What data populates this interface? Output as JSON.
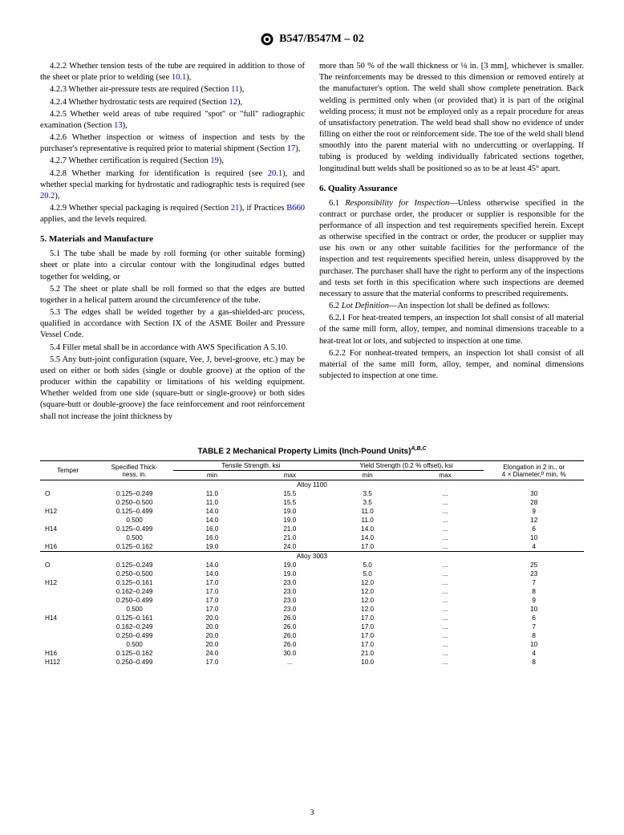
{
  "header": {
    "designation": "B547/B547M – 02"
  },
  "left": {
    "p422": "4.2.2 Whether tension tests of the tube are required in addition to those of the sheet or plate prior to welding (see ",
    "p422_ref": "10.1",
    "p422_end": "),",
    "p423": "4.2.3 Whether air-pressure tests are required (Section ",
    "p423_ref": "11",
    "p423_end": "),",
    "p424": "4.2.4 Whether hydrostatic tests are required (Section ",
    "p424_ref": "12",
    "p424_end": "),",
    "p425": "4.2.5 Whether weld areas of tube required \"spot\" or \"full\" radiographic examination (Section ",
    "p425_ref": "13",
    "p425_end": "),",
    "p426": "4.2.6 Whether inspection or witness of inspection and tests by the purchaser's representative is required prior to material shipment (Section ",
    "p426_ref": "17",
    "p426_end": "),",
    "p427": "4.2.7 Whether certification is required (Section ",
    "p427_ref": "19",
    "p427_end": "),",
    "p428a": "4.2.8 Whether marking for identification is required (see ",
    "p428_ref1": "20.1",
    "p428b": "), and whether special marking for hydrostatic and radiographic tests is required (see ",
    "p428_ref2": "20.2",
    "p428_end": "),",
    "p429a": "4.2.9 Whether special packaging is required (Section ",
    "p429_ref1": "21",
    "p429b": "), if Practices ",
    "p429_ref2": "B660",
    "p429_end": " applies, and the levels required.",
    "sec5_title": "5. Materials and Manufacture",
    "p51": "5.1 The tube shall be made by roll forming (or other suitable forming) sheet or plate into a circular contour with the longitudinal edges butted together for welding, or",
    "p52": "5.2 The sheet or plate shall be roll formed so that the edges are butted together in a helical pattern around the circumference of the tube.",
    "p53": "5.3 The edges shall be welded together by a gas-shielded-arc process, qualified in accordance with Section IX of the ASME Boiler and Pressure Vessel Code.",
    "p54": "5.4 Filler metal shall be in accordance with AWS Specification A 5.10.",
    "p55": "5.5 Any butt-joint configuration (square, Vee, J, bevel-groove, etc.) may be used on either or both sides (single or double groove) at the option of the producer within the capability or limitations of his welding equipment. Whether welded from one side (square-butt or single-groove) or both sides (square-butt or double-groove) the face reinforcement and root reinforcement shall not increase the joint thickness by"
  },
  "right": {
    "p55_cont": "more than 50 % of the wall thickness or ⅛ in. [3 mm], whichever is smaller. The reinforcements may be dressed to this dimension or removed entirely at the manufacturer's option. The weld shall show complete penetration. Back welding is permitted only when (or provided that) it is part of the original welding process; it must not be employed only as a repair procedure for areas of unsatisfactory penetration. The weld bead shall show no evidence of under filling on either the root or reinforcement side. The toe of the weld shall blend smoothly into the parent material with no undercutting or overlapping. If tubing is produced by welding individually fabricated sections together, longitudinal butt welds shall be positioned so as to be at least 45° apart.",
    "sec6_title": "6. Quality Assurance",
    "p61_lead": "6.1 ",
    "p61_head": "Responsibility for Inspection",
    "p61_body": "—Unless otherwise specified in the contract or purchase order, the producer or supplier is responsible for the performance of all inspection and test requirements specified herein. Except as otherwise specified in the contract or order, the producer or supplier may use his own or any other suitable facilities for the performance of the inspection and test requirements specified herein, unless disapproved by the purchaser. The purchaser shall have the right to perform any of the inspections and tests set forth in this specification where such inspections are deemed necessary to assure that the material conforms to prescribed requirements.",
    "p62_lead": "6.2 ",
    "p62_head": "Lot Definition",
    "p62_body": "—An inspection lot shall be defined as follows:",
    "p621": "6.2.1 For heat-treated tempers, an inspection lot shall consist of all material of the same mill form, alloy, temper, and nominal dimensions traceable to a heat-treat lot or lots, and subjected to inspection at one time.",
    "p622": "6.2.2 For nonheat-treated tempers, an inspection lot shall consist of all material of the same mill form, alloy, temper, and nominal dimensions subjected to inspection at one time."
  },
  "table": {
    "title": "TABLE 2  Mechanical Property Limits (Inch-Pound Units)",
    "title_sup": "A,B,C",
    "headers": {
      "temper": "Temper",
      "thickness": "Specified Thick-\nness, in.",
      "tensile": "Tensile Strength, ksi",
      "yield": "Yield Strength (0.2 % offset), ksi",
      "elong": "Elongation in 2 in., or\n4 × Diameter,ᴰ min, %",
      "min": "min",
      "max": "max"
    },
    "alloy1": "Alloy 1100",
    "alloy2": "Alloy 3003",
    "rows1": [
      {
        "t": "O",
        "th": "0.125–0.249",
        "tsmin": "11.0",
        "tsmax": "15.5",
        "ysmin": "3.5",
        "ysmax": "...",
        "el": "30"
      },
      {
        "t": "",
        "th": "0.250–0.500",
        "tsmin": "11.0",
        "tsmax": "15.5",
        "ysmin": "3.5",
        "ysmax": "...",
        "el": "28"
      },
      {
        "t": "H12",
        "th": "0.125–0.499",
        "tsmin": "14.0",
        "tsmax": "19.0",
        "ysmin": "11.0",
        "ysmax": "...",
        "el": "9"
      },
      {
        "t": "",
        "th": "0.500",
        "tsmin": "14.0",
        "tsmax": "19.0",
        "ysmin": "11.0",
        "ysmax": "...",
        "el": "12"
      },
      {
        "t": "H14",
        "th": "0.125–0.499",
        "tsmin": "16.0",
        "tsmax": "21.0",
        "ysmin": "14.0",
        "ysmax": "...",
        "el": "6"
      },
      {
        "t": "",
        "th": "0.500",
        "tsmin": "16.0",
        "tsmax": "21.0",
        "ysmin": "14.0",
        "ysmax": "...",
        "el": "10"
      },
      {
        "t": "H16",
        "th": "0.125–0.162",
        "tsmin": "19.0",
        "tsmax": "24.0",
        "ysmin": "17.0",
        "ysmax": "...",
        "el": "4"
      }
    ],
    "rows2": [
      {
        "t": "O",
        "th": "0.125–0.249",
        "tsmin": "14.0",
        "tsmax": "19.0",
        "ysmin": "5.0",
        "ysmax": "...",
        "el": "25"
      },
      {
        "t": "",
        "th": "0.250–0.500",
        "tsmin": "14.0",
        "tsmax": "19.0",
        "ysmin": "5.0",
        "ysmax": "...",
        "el": "23"
      },
      {
        "t": "H12",
        "th": "0.125–0.161",
        "tsmin": "17.0",
        "tsmax": "23.0",
        "ysmin": "12.0",
        "ysmax": "...",
        "el": "7"
      },
      {
        "t": "",
        "th": "0.162–0.249",
        "tsmin": "17.0",
        "tsmax": "23.0",
        "ysmin": "12.0",
        "ysmax": "...",
        "el": "8"
      },
      {
        "t": "",
        "th": "0.250–0.499",
        "tsmin": "17.0",
        "tsmax": "23.0",
        "ysmin": "12.0",
        "ysmax": "...",
        "el": "9"
      },
      {
        "t": "",
        "th": "0.500",
        "tsmin": "17.0",
        "tsmax": "23.0",
        "ysmin": "12.0",
        "ysmax": "...",
        "el": "10"
      },
      {
        "t": "H14",
        "th": "0.125–0.161",
        "tsmin": "20.0",
        "tsmax": "26.0",
        "ysmin": "17.0",
        "ysmax": "...",
        "el": "6"
      },
      {
        "t": "",
        "th": "0.162–0.249",
        "tsmin": "20.0",
        "tsmax": "26.0",
        "ysmin": "17.0",
        "ysmax": "...",
        "el": "7"
      },
      {
        "t": "",
        "th": "0.250–0.499",
        "tsmin": "20.0",
        "tsmax": "26.0",
        "ysmin": "17.0",
        "ysmax": "...",
        "el": "8"
      },
      {
        "t": "",
        "th": "0.500",
        "tsmin": "20.0",
        "tsmax": "26.0",
        "ysmin": "17.0",
        "ysmax": "...",
        "el": "10"
      },
      {
        "t": "H16",
        "th": "0.125–0.162",
        "tsmin": "24.0",
        "tsmax": "30.0",
        "ysmin": "21.0",
        "ysmax": "...",
        "el": "4"
      },
      {
        "t": "H112",
        "th": "0.250–0.499",
        "tsmin": "17.0",
        "tsmax": "...",
        "ysmin": "10.0",
        "ysmax": "...",
        "el": "8"
      }
    ]
  },
  "pagenum": "3"
}
